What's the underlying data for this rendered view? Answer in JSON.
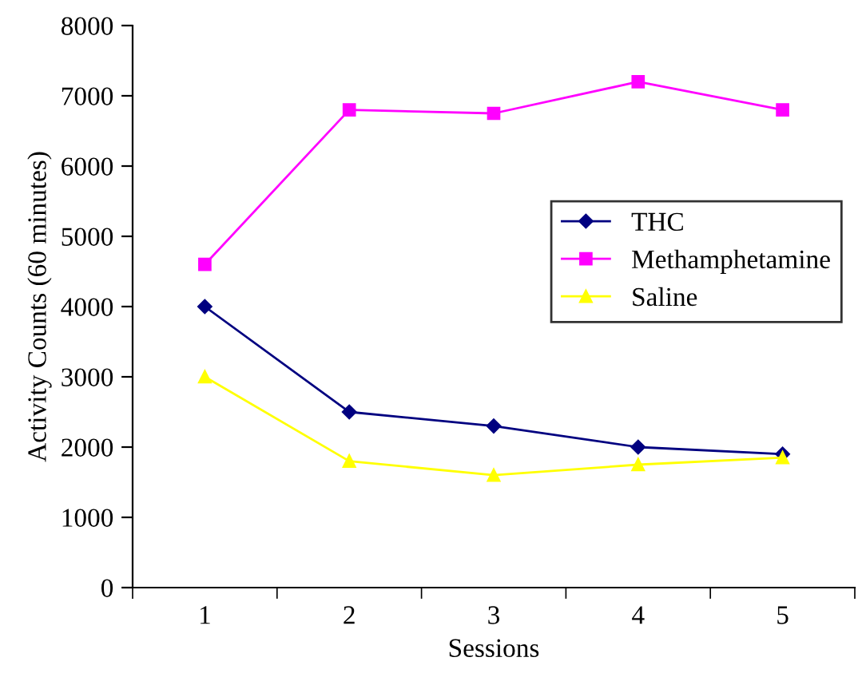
{
  "chart_data": {
    "type": "line",
    "xlabel": "Sessions",
    "ylabel": "Activity Counts (60 minutes)",
    "categories": [
      "1",
      "2",
      "3",
      "4",
      "5"
    ],
    "series": [
      {
        "name": "THC",
        "color": "#000080",
        "marker": "diamond",
        "values": [
          4000,
          2500,
          2300,
          2000,
          1900
        ]
      },
      {
        "name": "Methamphetamine",
        "color": "#ff00ff",
        "marker": "square",
        "values": [
          4600,
          6800,
          6750,
          7200,
          6800
        ]
      },
      {
        "name": "Saline",
        "color": "#ffff00",
        "marker": "triangle",
        "values": [
          3000,
          1800,
          1600,
          1750,
          1850
        ]
      }
    ],
    "ylim": [
      0,
      8000
    ],
    "yticks": [
      0,
      1000,
      2000,
      3000,
      4000,
      5000,
      6000,
      7000,
      8000
    ],
    "grid": false,
    "legend": "right",
    "line_style": "solid"
  }
}
